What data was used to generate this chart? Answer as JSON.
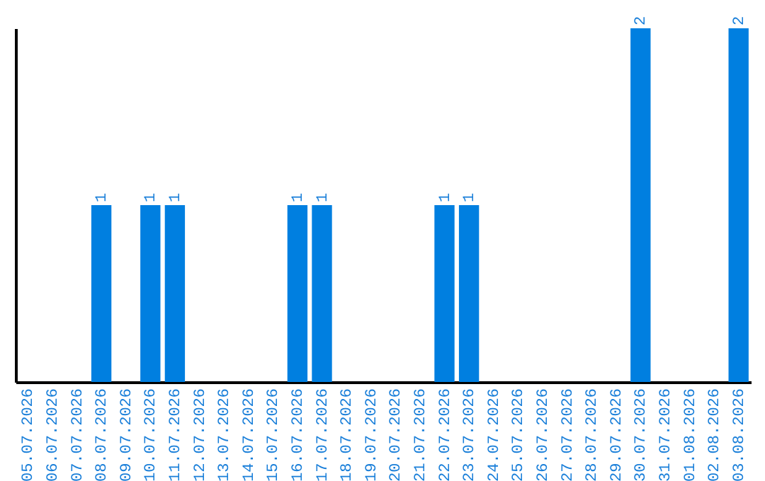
{
  "chart_data": {
    "type": "bar",
    "categories": [
      "05.07.2026",
      "06.07.2026",
      "07.07.2026",
      "08.07.2026",
      "09.07.2026",
      "10.07.2026",
      "11.07.2026",
      "12.07.2026",
      "13.07.2026",
      "14.07.2026",
      "15.07.2026",
      "16.07.2026",
      "17.07.2026",
      "18.07.2026",
      "19.07.2026",
      "20.07.2026",
      "21.07.2026",
      "22.07.2026",
      "23.07.2026",
      "24.07.2026",
      "25.07.2026",
      "26.07.2026",
      "27.07.2026",
      "28.07.2026",
      "29.07.2026",
      "30.07.2026",
      "31.07.2026",
      "01.08.2026",
      "02.08.2026",
      "03.08.2026"
    ],
    "values": [
      0,
      0,
      0,
      1,
      0,
      1,
      1,
      0,
      0,
      0,
      0,
      1,
      1,
      0,
      0,
      0,
      0,
      1,
      1,
      0,
      0,
      0,
      0,
      0,
      0,
      2,
      0,
      0,
      0,
      2
    ],
    "value_labels": [
      null,
      null,
      null,
      "1",
      null,
      "1",
      "1",
      null,
      null,
      null,
      null,
      "1",
      "1",
      null,
      null,
      null,
      null,
      "1",
      "1",
      null,
      null,
      null,
      null,
      null,
      null,
      "2",
      null,
      null,
      null,
      "2"
    ],
    "color": "#007fe0",
    "ylim": [
      0,
      2
    ],
    "tick_labels": "x",
    "grid": false
  }
}
